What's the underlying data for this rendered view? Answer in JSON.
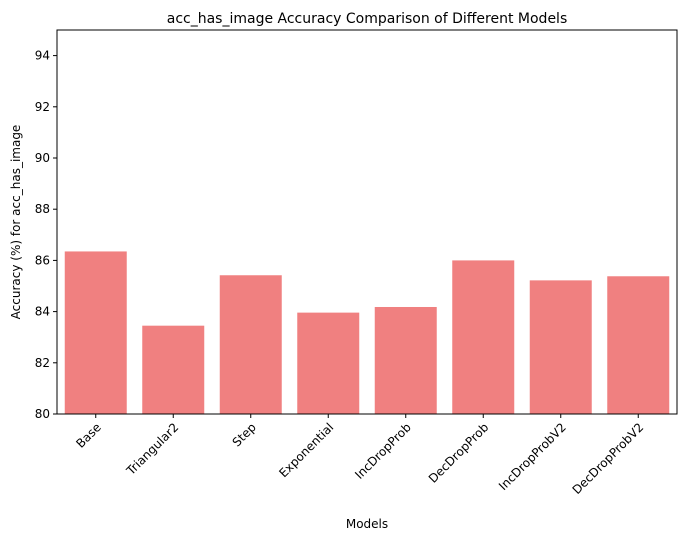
{
  "chart_data": {
    "type": "bar",
    "title": "acc_has_image Accuracy Comparison of Different Models",
    "xlabel": "Models",
    "ylabel": "Accuracy (%) for acc_has_image",
    "categories": [
      "Base",
      "Triangular2",
      "Step",
      "Exponential",
      "IncDropProb",
      "DecDropProb",
      "IncDropProbV2",
      "DecDropProbV2"
    ],
    "values": [
      86.35,
      83.45,
      85.42,
      83.96,
      84.18,
      86.0,
      85.22,
      85.38
    ],
    "ylim": [
      80,
      95
    ],
    "yticks": [
      80,
      82,
      84,
      86,
      88,
      90,
      92,
      94
    ],
    "bar_color": "#f08080",
    "grid": false,
    "legend": false,
    "xtick_rotation_deg": 45
  }
}
